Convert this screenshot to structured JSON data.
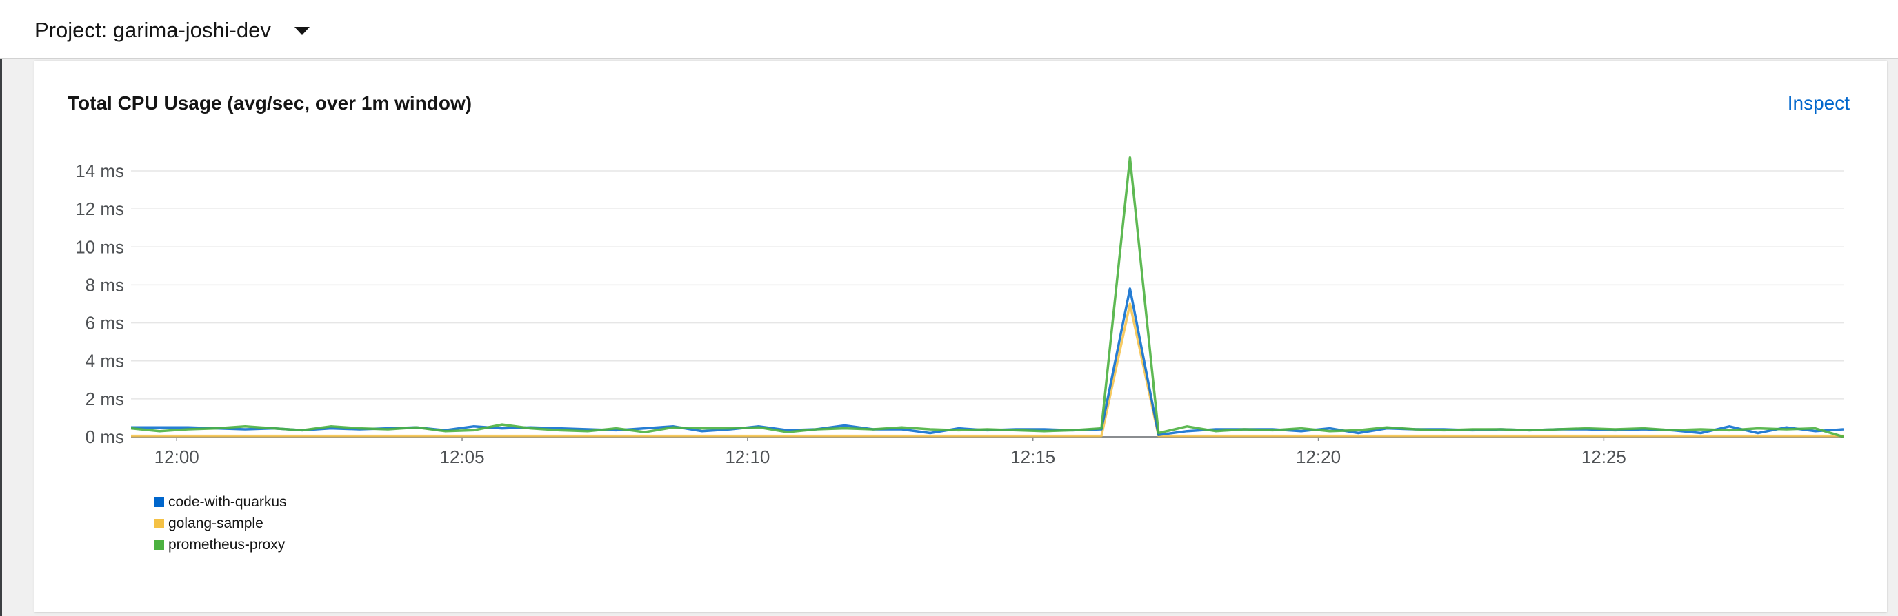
{
  "header": {
    "project_label": "Project: garima-joshi-dev"
  },
  "card": {
    "title": "Total CPU Usage (avg/sec, over 1m window)",
    "inspect_label": "Inspect"
  },
  "chart_data": {
    "type": "line",
    "title": "Total CPU Usage (avg/sec, over 1m window)",
    "xlabel": "",
    "ylabel": "",
    "x_ticks": [
      "12:00",
      "12:05",
      "12:10",
      "12:15",
      "12:20",
      "12:25"
    ],
    "y_ticks": [
      "0 ms",
      "2 ms",
      "4 ms",
      "6 ms",
      "8 ms",
      "10 ms",
      "12 ms",
      "14 ms"
    ],
    "ylim": [
      0,
      14
    ],
    "xlim": [
      "11:59.2",
      "12:29.2"
    ],
    "grid": true,
    "legend_position": "bottom-left",
    "x": [
      "11:59.2",
      "11:59.7",
      "12:00.2",
      "12:00.7",
      "12:01.2",
      "12:01.7",
      "12:02.2",
      "12:02.7",
      "12:03.2",
      "12:03.7",
      "12:04.2",
      "12:04.7",
      "12:05.2",
      "12:05.7",
      "12:06.2",
      "12:06.7",
      "12:07.2",
      "12:07.7",
      "12:08.2",
      "12:08.7",
      "12:09.2",
      "12:09.7",
      "12:10.2",
      "12:10.7",
      "12:11.2",
      "12:11.7",
      "12:12.2",
      "12:12.7",
      "12:13.2",
      "12:13.7",
      "12:14.2",
      "12:14.7",
      "12:15.2",
      "12:15.7",
      "12:16.2",
      "12:16.7",
      "12:17.2",
      "12:17.7",
      "12:18.2",
      "12:18.7",
      "12:19.2",
      "12:19.7",
      "12:20.2",
      "12:20.7",
      "12:21.2",
      "12:21.7",
      "12:22.2",
      "12:22.7",
      "12:23.2",
      "12:23.7",
      "12:24.2",
      "12:24.7",
      "12:25.2",
      "12:25.7",
      "12:26.2",
      "12:26.7",
      "12:27.2",
      "12:27.7",
      "12:28.2",
      "12:28.7",
      "12:29.2"
    ],
    "series": [
      {
        "name": "code-with-quarkus",
        "color": "#0066cc",
        "values": [
          0.5,
          0.5,
          0.5,
          0.45,
          0.4,
          0.45,
          0.35,
          0.45,
          0.4,
          0.45,
          0.5,
          0.35,
          0.55,
          0.45,
          0.5,
          0.45,
          0.4,
          0.35,
          0.45,
          0.55,
          0.3,
          0.4,
          0.55,
          0.35,
          0.4,
          0.6,
          0.4,
          0.4,
          0.2,
          0.45,
          0.35,
          0.4,
          0.4,
          0.35,
          0.4,
          7.8,
          0.1,
          0.3,
          0.4,
          0.4,
          0.4,
          0.3,
          0.45,
          0.2,
          0.45,
          0.4,
          0.4,
          0.35,
          0.4,
          0.35,
          0.4,
          0.4,
          0.35,
          0.4,
          0.35,
          0.2,
          0.55,
          0.2,
          0.5,
          0.3,
          0.4
        ]
      },
      {
        "name": "golang-sample",
        "color": "#f4c145",
        "values": [
          0.05,
          0.05,
          0.05,
          0.05,
          0.05,
          0.05,
          0.05,
          0.05,
          0.05,
          0.05,
          0.05,
          0.05,
          0.05,
          0.05,
          0.05,
          0.05,
          0.05,
          0.05,
          0.05,
          0.05,
          0.05,
          0.05,
          0.05,
          0.05,
          0.05,
          0.05,
          0.05,
          0.05,
          0.05,
          0.05,
          0.05,
          0.05,
          0.05,
          0.05,
          0.05,
          7.0,
          0.05,
          0.05,
          0.05,
          0.05,
          0.05,
          0.05,
          0.05,
          0.05,
          0.05,
          0.05,
          0.05,
          0.05,
          0.05,
          0.05,
          0.05,
          0.05,
          0.05,
          0.05,
          0.05,
          0.05,
          0.05,
          0.05,
          0.05,
          0.05,
          0.05
        ]
      },
      {
        "name": "prometheus-proxy",
        "color": "#4cb140",
        "values": [
          0.45,
          0.3,
          0.4,
          0.45,
          0.55,
          0.45,
          0.35,
          0.55,
          0.45,
          0.4,
          0.5,
          0.3,
          0.35,
          0.65,
          0.45,
          0.35,
          0.3,
          0.45,
          0.25,
          0.5,
          0.45,
          0.45,
          0.5,
          0.25,
          0.4,
          0.45,
          0.4,
          0.5,
          0.4,
          0.35,
          0.4,
          0.35,
          0.3,
          0.35,
          0.45,
          14.7,
          0.2,
          0.55,
          0.3,
          0.4,
          0.35,
          0.45,
          0.3,
          0.35,
          0.5,
          0.4,
          0.35,
          0.4,
          0.4,
          0.35,
          0.4,
          0.45,
          0.4,
          0.45,
          0.35,
          0.4,
          0.35,
          0.45,
          0.4,
          0.45,
          0.0
        ]
      }
    ]
  }
}
